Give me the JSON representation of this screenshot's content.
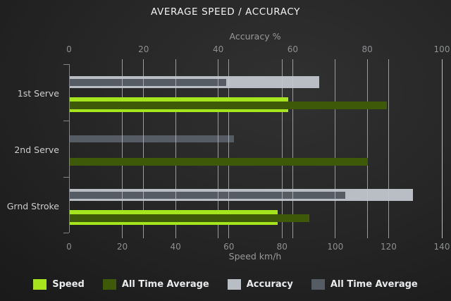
{
  "title": "AVERAGE SPEED / ACCURACY",
  "colors": {
    "speed": "#a6e41e",
    "speed_all_time_avg": "#3e5a08",
    "accuracy": "#b9bec4",
    "accuracy_all_time_avg": "#565c64",
    "gridline": "#c6c9cb",
    "axis": "#828485",
    "tick_text": "#8d8f90",
    "category_text": "#cbcdce",
    "title_text": "#f1f1f1"
  },
  "chart_data": {
    "type": "bar",
    "orientation": "horizontal",
    "title": "AVERAGE SPEED / ACCURACY",
    "categories": [
      "1st Serve",
      "2nd Serve",
      "Grnd Stroke"
    ],
    "axes": {
      "top": {
        "label": "Accuracy %",
        "min": 0,
        "max": 100,
        "ticks": [
          0,
          20,
          40,
          60,
          80,
          100
        ]
      },
      "bottom": {
        "label": "Speed km/h",
        "min": 0,
        "max": 140,
        "ticks": [
          0,
          20,
          40,
          60,
          80,
          100,
          120,
          140
        ]
      }
    },
    "series": [
      {
        "name": "Speed",
        "key": "speed",
        "axis": "bottom",
        "color": "#a6e41e",
        "values": [
          82,
          0,
          78
        ]
      },
      {
        "name": "All Time Average",
        "key": "speed-avg",
        "axis": "bottom",
        "color": "#3e5a08",
        "values": [
          119,
          112,
          90
        ]
      },
      {
        "name": "Accuracy",
        "key": "accuracy",
        "axis": "top",
        "color": "#b9bec4",
        "values": [
          67,
          0,
          92
        ]
      },
      {
        "name": "All Time Average",
        "key": "accuracy-avg",
        "axis": "top",
        "color": "#565c64",
        "values": [
          42,
          44,
          74
        ]
      }
    ],
    "grid": true,
    "legend_position": "bottom",
    "legend": [
      "Speed",
      "All Time Average",
      "Accuracy",
      "All Time Average"
    ]
  },
  "legend": {
    "items": [
      {
        "label": "Speed"
      },
      {
        "label": "All Time Average"
      },
      {
        "label": "Accuracy"
      },
      {
        "label": "All Time Average"
      }
    ]
  }
}
